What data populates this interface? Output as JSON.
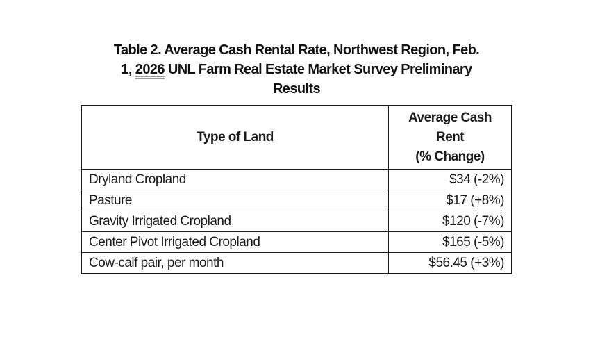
{
  "caption": {
    "line1": "Table 2. Average Cash Rental Rate, Northwest Region, Feb.",
    "line2_prefix": "1, ",
    "line2_underlined": "2026",
    "line2_suffix": " UNL Farm Real Estate Market Survey Preliminary",
    "line3": "Results"
  },
  "table": {
    "headers": {
      "type_of_land": "Type of Land",
      "rent_line1": "Average Cash",
      "rent_line2": "Rent",
      "rent_line3": "(% Change)"
    },
    "rows": [
      {
        "type": "Dryland Cropland",
        "rent": "$34 (-2%)"
      },
      {
        "type": "Pasture",
        "rent": "$17 (+8%)"
      },
      {
        "type": "Gravity Irrigated Cropland",
        "rent": "$120 (-7%)"
      },
      {
        "type": "Center Pivot Irrigated Cropland",
        "rent": "$165 (-5%)"
      },
      {
        "type": "Cow-calf pair, per month",
        "rent": "$56.45 (+3%)"
      }
    ]
  }
}
